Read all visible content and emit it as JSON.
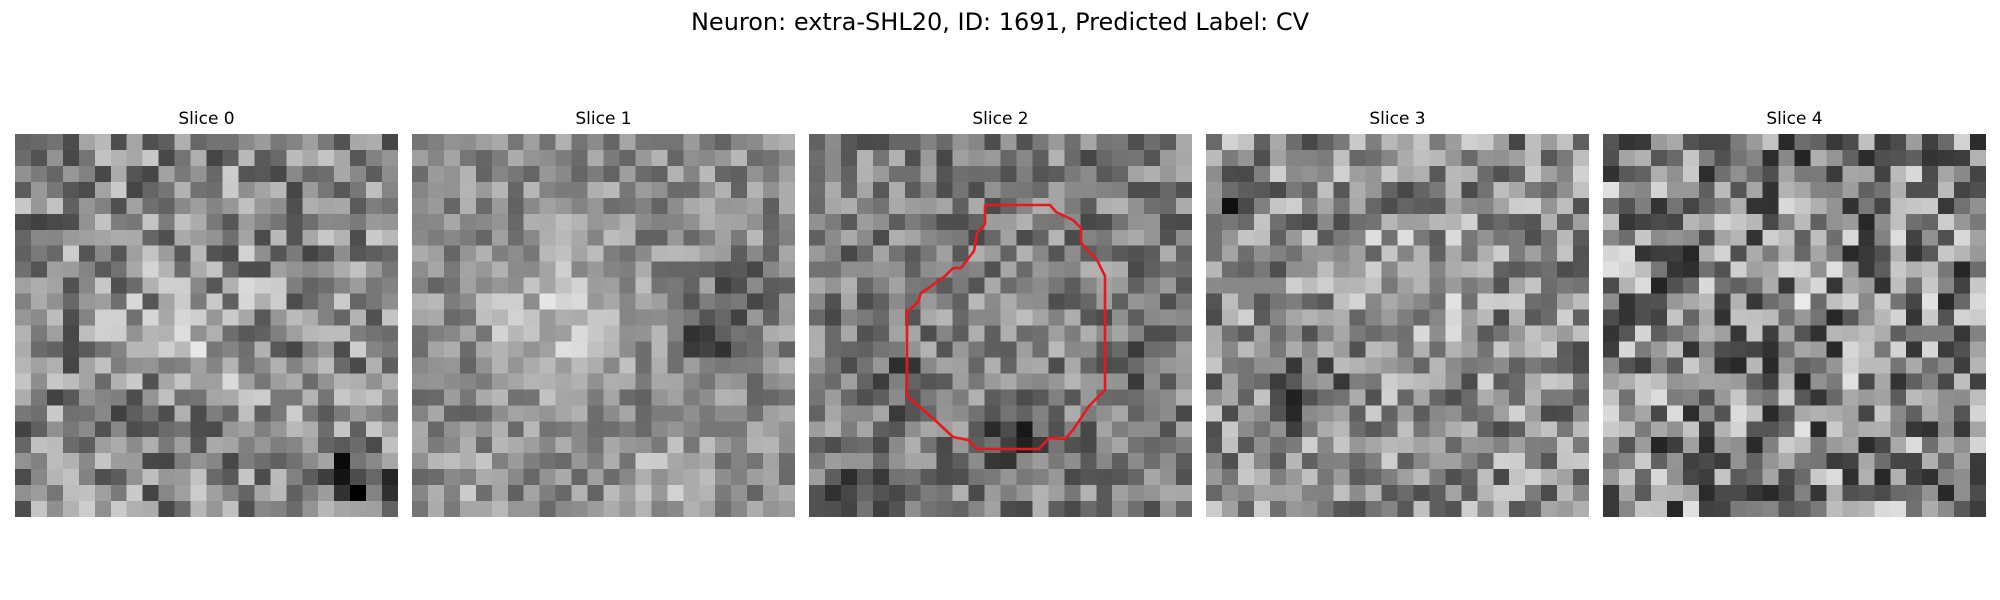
{
  "figure": {
    "title": "Neuron: extra-SHL20, ID: 1691, Predicted Label: CV"
  },
  "slices": [
    {
      "title": "Slice 0",
      "has_contour": false
    },
    {
      "title": "Slice 1",
      "has_contour": false
    },
    {
      "title": "Slice 2",
      "has_contour": true
    },
    {
      "title": "Slice 3",
      "has_contour": false
    },
    {
      "title": "Slice 4",
      "has_contour": false
    }
  ],
  "colors": {
    "contour": "#e8191c",
    "background": "#ffffff",
    "colormap": "grayscale"
  }
}
